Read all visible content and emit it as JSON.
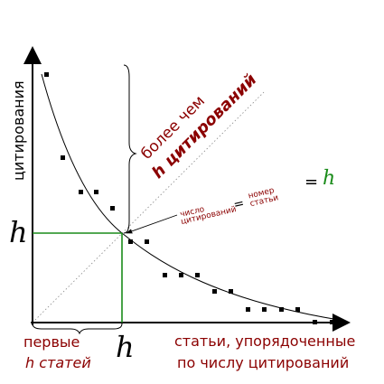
{
  "y_axis_label": "цитирования",
  "h_left": "h",
  "h_bottom": "h",
  "h_right": "h",
  "bottom_left_line1": "первые",
  "bottom_left_line2": "h статей",
  "bottom_right_line1": "статьи, упорядоченные",
  "bottom_right_line2": "по числу цитирований",
  "brace_text_more": "более чем",
  "brace_text_h_cit": "h цитирований",
  "eq_number": "номер",
  "eq_article": "статьи",
  "eq_citations_number": "число",
  "eq_citations_word": "цитирований",
  "eq_sign": "=",
  "colors": {
    "dark_red": "#8b0000",
    "green": "#1a8c1a",
    "axis": "#000000"
  },
  "chart_data": {
    "type": "scatter",
    "title": "",
    "xlabel": "статьи, упорядоченные по числу цитирований",
    "ylabel": "цитирования",
    "points_count": 20,
    "h_index_point": "h"
  }
}
